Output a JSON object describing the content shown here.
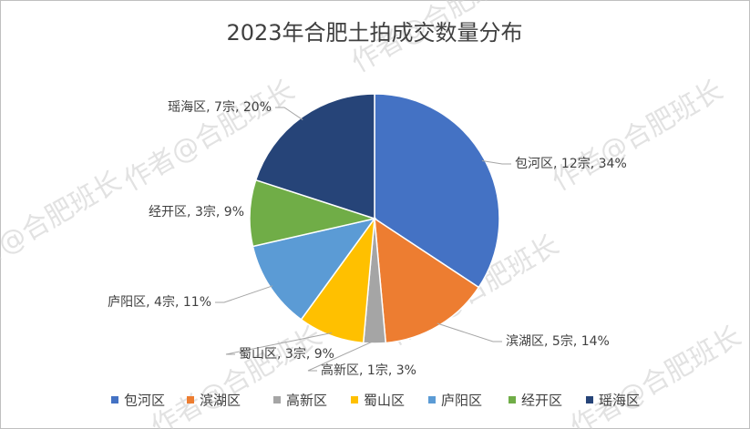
{
  "chart_data": {
    "type": "pie",
    "title": "2023年合肥土拍成交数量分布",
    "categories": [
      "包河区",
      "滨湖区",
      "高新区",
      "蜀山区",
      "庐阳区",
      "经开区",
      "瑶海区"
    ],
    "values": [
      12,
      5,
      1,
      3,
      4,
      3,
      7
    ],
    "value_labels": [
      "12宗",
      "5宗",
      "1宗",
      "3宗",
      "4宗",
      "3宗",
      "7宗"
    ],
    "percentages": [
      34,
      14,
      3,
      9,
      11,
      9,
      20
    ],
    "percentage_labels": [
      "34%",
      "14%",
      "3%",
      "9%",
      "11%",
      "9%",
      "20%"
    ],
    "colors": [
      "#4472c4",
      "#ed7d31",
      "#a5a5a5",
      "#ffc000",
      "#5b9bd5",
      "#70ad47",
      "#264478"
    ],
    "legend": "bottom"
  },
  "watermark": "作者@合肥班长"
}
